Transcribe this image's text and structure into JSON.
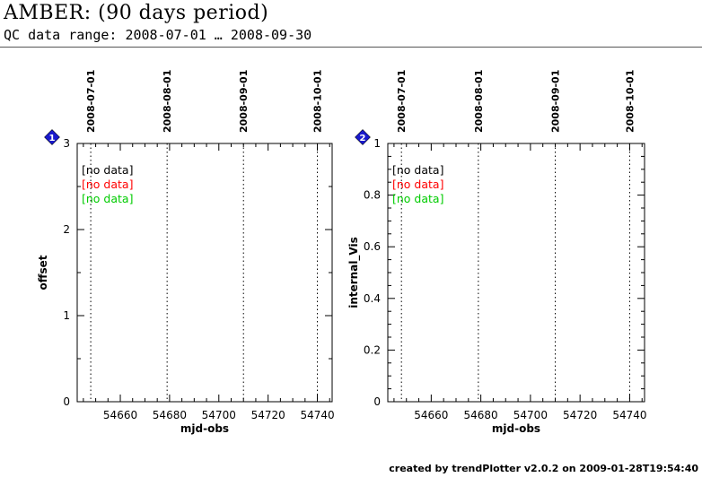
{
  "header": {
    "title": "AMBER: (90 days period)",
    "subtitle": "QC data range: 2008-07-01 … 2008-09-30"
  },
  "footer": {
    "credit": "created  by  trendPlotter  v2.0.2  on  2009-01-28T19:54:40"
  },
  "colors": {
    "series": [
      "#000000",
      "#ff0000",
      "#00cc00"
    ],
    "badge": "#1a1acc"
  },
  "chart_data": [
    {
      "type": "scatter",
      "badge": "1",
      "xlabel": "mjd-obs",
      "ylabel": "offset",
      "xlim": [
        54642.5,
        54746
      ],
      "ylim": [
        0,
        3
      ],
      "xticks": [
        54660,
        54680,
        54700,
        54720,
        54740
      ],
      "yticks": [
        0,
        1,
        2,
        3
      ],
      "date_markers": [
        {
          "label": "2008-07-01",
          "mjd": 54648
        },
        {
          "label": "2008-08-01",
          "mjd": 54679
        },
        {
          "label": "2008-09-01",
          "mjd": 54710
        },
        {
          "label": "2008-10-01",
          "mjd": 54740
        }
      ],
      "series": [
        {
          "label": "[no data]",
          "color": "#000000",
          "values": []
        },
        {
          "label": "[no data]",
          "color": "#ff0000",
          "values": []
        },
        {
          "label": "[no data]",
          "color": "#00cc00",
          "values": []
        }
      ]
    },
    {
      "type": "scatter",
      "badge": "2",
      "xlabel": "mjd-obs",
      "ylabel": "internal_Vis",
      "xlim": [
        54642.5,
        54746
      ],
      "ylim": [
        0,
        1
      ],
      "xticks": [
        54660,
        54680,
        54700,
        54720,
        54740
      ],
      "yticks": [
        0,
        0.2,
        0.4,
        0.6,
        0.8,
        1
      ],
      "date_markers": [
        {
          "label": "2008-07-01",
          "mjd": 54648
        },
        {
          "label": "2008-08-01",
          "mjd": 54679
        },
        {
          "label": "2008-09-01",
          "mjd": 54710
        },
        {
          "label": "2008-10-01",
          "mjd": 54740
        }
      ],
      "series": [
        {
          "label": "[no data]",
          "color": "#000000",
          "values": []
        },
        {
          "label": "[no data]",
          "color": "#ff0000",
          "values": []
        },
        {
          "label": "[no data]",
          "color": "#00cc00",
          "values": []
        }
      ]
    }
  ]
}
